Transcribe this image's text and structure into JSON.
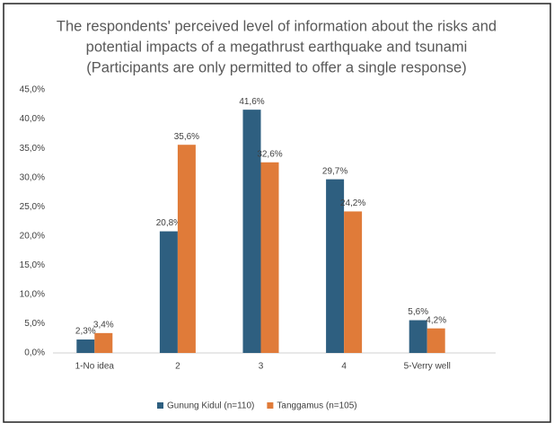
{
  "chart_data": {
    "type": "bar",
    "title": [
      "The respondents' perceived level of information about the risks and",
      "potential impacts of a megathrust earthquake and tsunami",
      "(Participants are only permitted to offer a single response)"
    ],
    "categories": [
      "1-No idea",
      "2",
      "3",
      "4",
      "5-Verry well"
    ],
    "series": [
      {
        "name": "Gunung Kidul (n=110)",
        "color": "#2e5f80",
        "values": [
          2.3,
          20.8,
          41.6,
          29.7,
          5.6
        ],
        "value_labels": [
          "2,3%",
          "20,8%",
          "41,6%",
          "29,7%",
          "5,6%"
        ]
      },
      {
        "name": "Tanggamus (n=105)",
        "color": "#e07b39",
        "values": [
          3.4,
          35.6,
          32.6,
          24.2,
          4.2
        ],
        "value_labels": [
          "3,4%",
          "35,6%",
          "32,6%",
          "24,2%",
          "4,2%"
        ]
      }
    ],
    "ylim": [
      0,
      45
    ],
    "yticks": [
      {
        "value": 0,
        "label": "0,0%"
      },
      {
        "value": 5,
        "label": "5,0%"
      },
      {
        "value": 10,
        "label": "10,0%"
      },
      {
        "value": 15,
        "label": "15,0%"
      },
      {
        "value": 20,
        "label": "20,0%"
      },
      {
        "value": 25,
        "label": "25,0%"
      },
      {
        "value": 30,
        "label": "30,0%"
      },
      {
        "value": 35,
        "label": "35,0%"
      },
      {
        "value": 40,
        "label": "40,0%"
      },
      {
        "value": 45,
        "label": "45,0%"
      }
    ],
    "grid": false,
    "legend": "bottom"
  }
}
